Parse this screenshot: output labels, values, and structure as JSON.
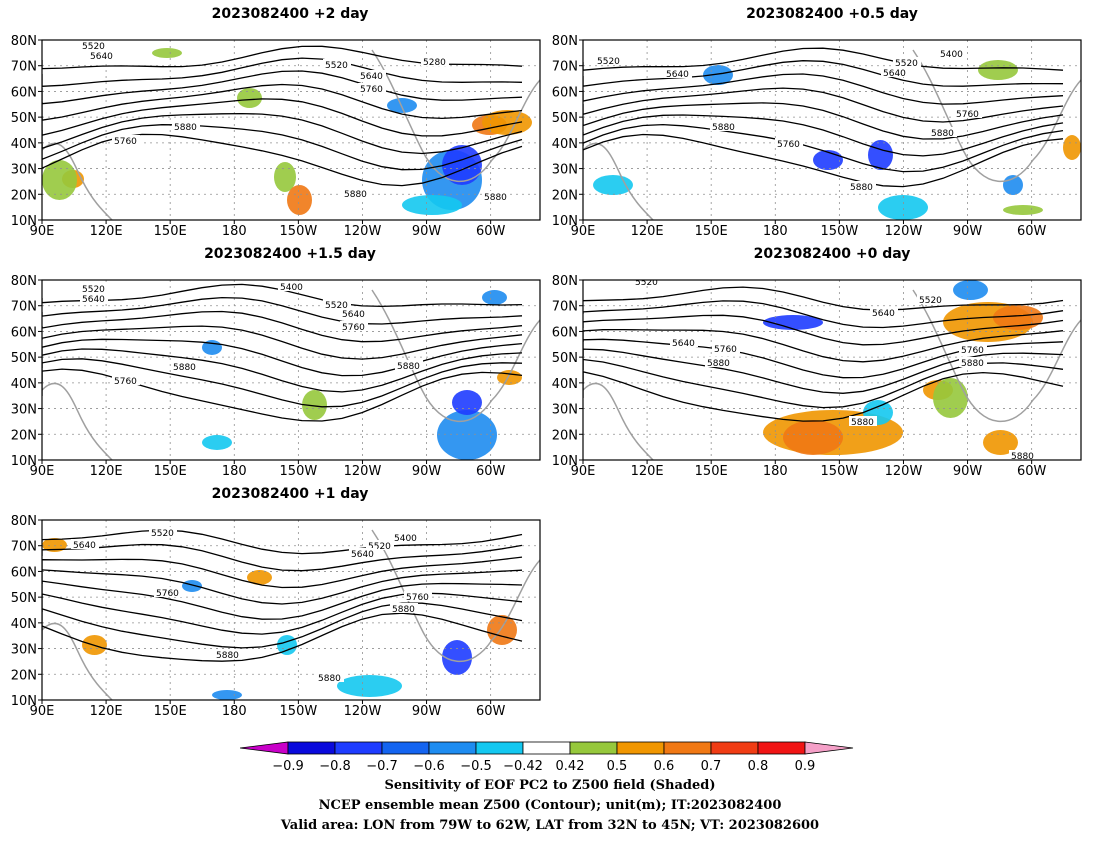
{
  "panels": [
    {
      "id": "p2",
      "title": "2023082400  +2 day",
      "contour_labels": [
        "5520",
        "5640",
        "5520",
        "5640",
        "5760",
        "5280",
        "5880",
        "5760",
        "5880",
        "5880"
      ]
    },
    {
      "id": "p05",
      "title": "2023082400  +0.5 day",
      "contour_labels": [
        "5520",
        "5640",
        "5400",
        "5520",
        "5640",
        "5760",
        "5880",
        "5760",
        "5880",
        "5880"
      ]
    },
    {
      "id": "p15",
      "title": "2023082400  +1.5 day",
      "contour_labels": [
        "5520",
        "5640",
        "5400",
        "5520",
        "5640",
        "5760",
        "5760",
        "5880",
        "5880"
      ]
    },
    {
      "id": "p0",
      "title": "2023082400  +0 day",
      "contour_labels": [
        "5520",
        "5520",
        "5640",
        "5640",
        "5760",
        "5880",
        "5760",
        "5880",
        "5880",
        "5880"
      ]
    },
    {
      "id": "p1",
      "title": "2023082400  +1 day",
      "contour_labels": [
        "5520",
        "5640",
        "5400",
        "5520",
        "5640",
        "5760",
        "5760",
        "5880",
        "5880",
        "5880"
      ]
    }
  ],
  "axes": {
    "lat_labels": [
      "80N",
      "70N",
      "60N",
      "50N",
      "40N",
      "30N",
      "20N",
      "10N"
    ],
    "lon_labels": [
      "90E",
      "120E",
      "150E",
      "180",
      "150W",
      "120W",
      "90W",
      "60W"
    ]
  },
  "colorbar": {
    "ticks": [
      "−0.9",
      "−0.8",
      "−0.7",
      "−0.6",
      "−0.5",
      "−0.42",
      "0.42",
      "0.5",
      "0.6",
      "0.7",
      "0.8",
      "0.9"
    ],
    "colors": [
      "#c800c8",
      "#0a0adc",
      "#1e3cff",
      "#1464f0",
      "#1e8cf0",
      "#14c8f0",
      "#ffffff",
      "#96c83c",
      "#f09600",
      "#f07814",
      "#f03c14",
      "#f01414",
      "#f5a0c8"
    ]
  },
  "caption": {
    "line1": "Sensitivity of EOF PC2 to Z500 field (Shaded)",
    "line2": "NCEP ensemble mean Z500 (Contour); unit(m); IT:2023082400",
    "line3": "Valid area: LON from 79W to 62W, LAT from 32N to 45N; VT: 2023082600"
  },
  "colors": {
    "contour": "#000000",
    "coast": "#a0a0a0",
    "grid": "#909090"
  }
}
